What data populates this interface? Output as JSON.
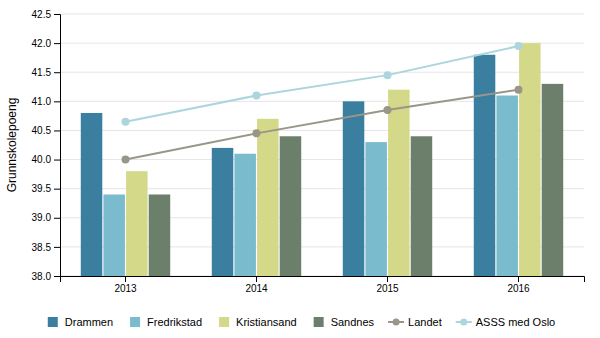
{
  "chart_data": {
    "type": "bar",
    "ylabel": "Grunnskolepoeng",
    "categories": [
      "2013",
      "2014",
      "2015",
      "2016"
    ],
    "series": [
      {
        "name": "Drammen",
        "type": "bar",
        "color": "#3a7fa0",
        "values": [
          40.8,
          40.2,
          41.0,
          41.8
        ]
      },
      {
        "name": "Fredrikstad",
        "type": "bar",
        "color": "#7abcce",
        "values": [
          39.4,
          40.1,
          40.3,
          41.1
        ]
      },
      {
        "name": "Kristiansand",
        "type": "bar",
        "color": "#d4d98a",
        "values": [
          39.8,
          40.7,
          41.2,
          42.0
        ]
      },
      {
        "name": "Sandnes",
        "type": "bar",
        "color": "#6b7f6b",
        "values": [
          39.4,
          40.4,
          40.4,
          41.3
        ]
      },
      {
        "name": "Landet",
        "type": "line",
        "marker": "circle",
        "color": "#9a9589",
        "values": [
          40.0,
          40.45,
          40.85,
          41.2
        ]
      },
      {
        "name": "ASSS med Oslo",
        "type": "line",
        "marker": "circle",
        "color": "#acd5de",
        "values": [
          40.65,
          41.1,
          41.45,
          41.95
        ]
      }
    ],
    "ylim": [
      38,
      42.5
    ],
    "yticks": [
      {
        "value": 38,
        "label": "38.0"
      },
      38.5,
      {
        "value": 39,
        "label": "39.0"
      },
      39.5,
      {
        "value": 40,
        "label": "40.0"
      },
      40.5,
      {
        "value": 41,
        "label": "41.0"
      },
      41.5,
      {
        "value": 42,
        "label": "42.0"
      },
      42.5
    ],
    "grid": true,
    "legend": "bottom"
  }
}
